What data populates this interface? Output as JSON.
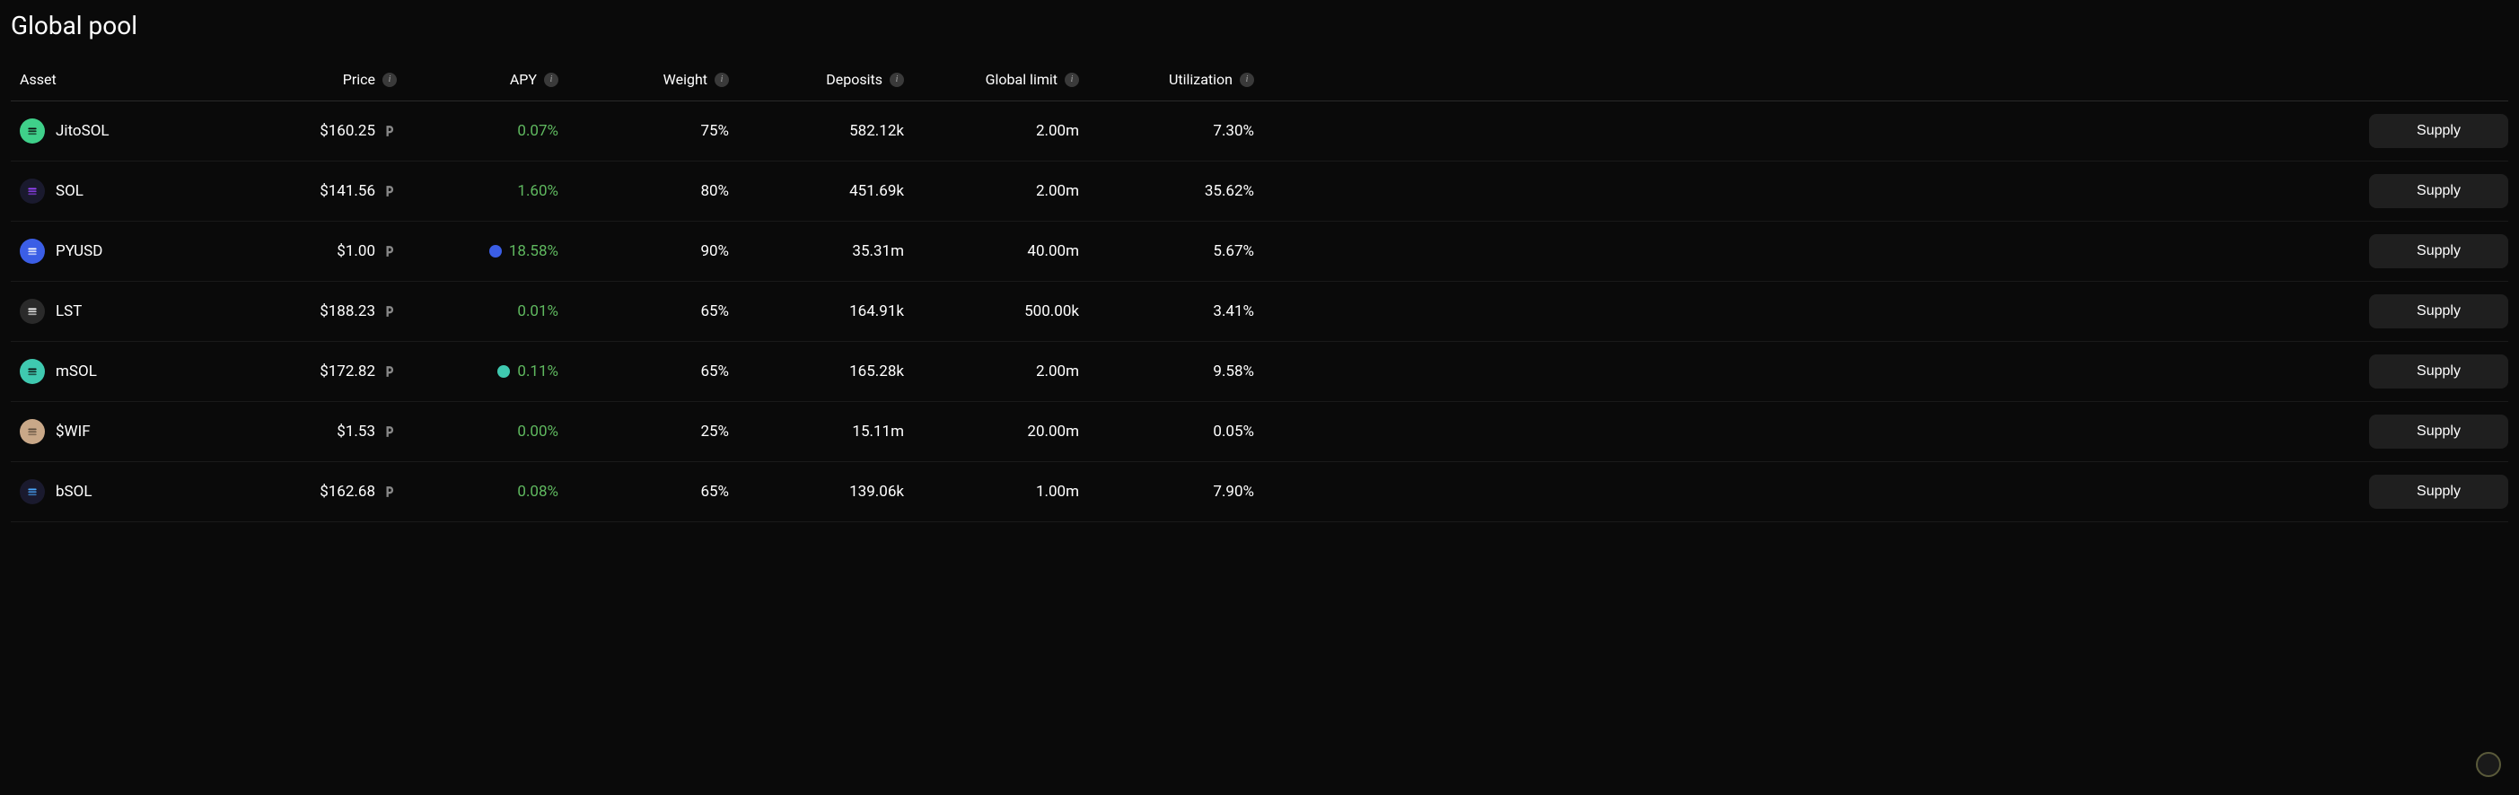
{
  "title": "Global pool",
  "headers": {
    "asset": "Asset",
    "price": "Price",
    "apy": "APY",
    "weight": "Weight",
    "deposits": "Deposits",
    "global_limit": "Global limit",
    "utilization": "Utilization"
  },
  "supply_button_label": "Supply",
  "colors": {
    "background": "#0a0a0a",
    "text": "#ffffff",
    "apy_positive": "#5fb85f",
    "button_bg": "#1f1f1f",
    "border": "#2a2a2a",
    "info_icon_bg": "#3a3a3a"
  },
  "rows": [
    {
      "asset": "JitoSOL",
      "icon_bg": "#3fd08a",
      "icon_fg": "#0a0a0a",
      "price": "$160.25",
      "apy": "0.07%",
      "apy_badge": null,
      "weight": "75%",
      "deposits": "582.12k",
      "global_limit": "2.00m",
      "utilization": "7.30%"
    },
    {
      "asset": "SOL",
      "icon_bg": "#1a1a2e",
      "icon_fg": "#9945ff",
      "price": "$141.56",
      "apy": "1.60%",
      "apy_badge": null,
      "weight": "80%",
      "deposits": "451.69k",
      "global_limit": "2.00m",
      "utilization": "35.62%"
    },
    {
      "asset": "PYUSD",
      "icon_bg": "#3b5ee6",
      "icon_fg": "#ffffff",
      "price": "$1.00",
      "apy": "18.58%",
      "apy_badge": "#3b5ee6",
      "weight": "90%",
      "deposits": "35.31m",
      "global_limit": "40.00m",
      "utilization": "5.67%"
    },
    {
      "asset": "LST",
      "icon_bg": "#2a2a2a",
      "icon_fg": "#ffffff",
      "price": "$188.23",
      "apy": "0.01%",
      "apy_badge": null,
      "weight": "65%",
      "deposits": "164.91k",
      "global_limit": "500.00k",
      "utilization": "3.41%"
    },
    {
      "asset": "mSOL",
      "icon_bg": "#3fc9b0",
      "icon_fg": "#0a0a0a",
      "price": "$172.82",
      "apy": "0.11%",
      "apy_badge": "#3fc9b0",
      "weight": "65%",
      "deposits": "165.28k",
      "global_limit": "2.00m",
      "utilization": "9.58%"
    },
    {
      "asset": "$WIF",
      "icon_bg": "#c9a888",
      "icon_fg": "#5a4a3a",
      "price": "$1.53",
      "apy": "0.00%",
      "apy_badge": null,
      "weight": "25%",
      "deposits": "15.11m",
      "global_limit": "20.00m",
      "utilization": "0.05%"
    },
    {
      "asset": "bSOL",
      "icon_bg": "#1a1a2e",
      "icon_fg": "#4aa8ff",
      "price": "$162.68",
      "apy": "0.08%",
      "apy_badge": null,
      "weight": "65%",
      "deposits": "139.06k",
      "global_limit": "1.00m",
      "utilization": "7.90%"
    }
  ]
}
